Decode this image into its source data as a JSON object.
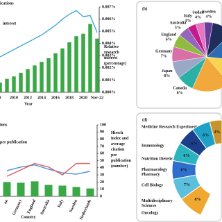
{
  "chart_data": [
    {
      "type": "bar",
      "panel_label": null,
      "categories": [
        "8",
        null,
        "2010",
        null,
        "2012",
        null,
        "2014",
        null,
        "2016",
        null,
        "2018",
        null,
        "2020",
        null,
        "Nov-22"
      ],
      "series": [
        {
          "name": "ications",
          "kind": "bar",
          "color": "#3aa845",
          "values": [
            0.0008,
            0.0011,
            0.0013,
            0.0016,
            0.0019,
            0.0022,
            0.0025,
            0.0028,
            0.0032,
            0.0036,
            0.0041,
            0.0046,
            0.0048,
            0.0056,
            0.0044
          ]
        },
        {
          "name": "interest",
          "kind": "line",
          "color": "#3fa9d6",
          "values": [
            0.0029,
            0.0032,
            0.0035,
            0.0038,
            0.0041,
            0.0044,
            0.0047,
            0.0051,
            0.0055,
            0.006,
            0.0064,
            0.0067,
            0.0062,
            0.0063,
            0.0049
          ]
        }
      ],
      "ylim": [
        0,
        0.007
      ],
      "yticks": [
        {
          "value": 0,
          "label": "0.000%"
        },
        {
          "value": 0.001,
          "label": "0.001%"
        },
        {
          "value": 0.002,
          "label": "0.002%"
        },
        {
          "value": 0.003,
          "label": "0.003%"
        },
        {
          "value": 0.004,
          "label": "0.004%"
        },
        {
          "value": 0.005,
          "label": "0.005%"
        },
        {
          "value": 0.006,
          "label": "0.006%"
        },
        {
          "value": 0.007,
          "label": "0.007%"
        }
      ],
      "x_label": "Year",
      "y_label": "Relative research interest (percentage)"
    },
    {
      "type": "pie",
      "panel_label": "(b)",
      "categories": [
        "Sweden",
        "Sudan",
        "Italy",
        "Australia",
        "England",
        "Germany",
        "Japan",
        "Canada",
        null,
        null,
        null,
        null
      ],
      "values": [
        4,
        4,
        4,
        5,
        6,
        7,
        8,
        8,
        18,
        12,
        14,
        10
      ],
      "value_labels": [
        "4%",
        "4%",
        "4%",
        "5%",
        "6%",
        "7%",
        "8%",
        "8%",
        null,
        null,
        null,
        null
      ],
      "colors": [
        "#6a3d9a",
        "#e377c2",
        "#c51b8a",
        "#9467bd",
        "#8fbc3f",
        "#d86fa8",
        "#9aa7c7",
        "#2bb0a6",
        "#f2a93b",
        "#f7d44a",
        "#2e6db4",
        "#1f2d5a"
      ]
    },
    {
      "type": "bar",
      "panel_label": null,
      "categories": [
        "an",
        "Germany",
        "England",
        "Australia",
        "Italy",
        "Sweden",
        "Netherlands"
      ],
      "series": [
        {
          "name": "ions",
          "kind": "bar",
          "color": "#3aa845",
          "values": [
            20,
            19,
            21,
            16,
            15,
            13,
            11
          ]
        },
        {
          "name": "per publication",
          "kind": "line",
          "color": "#4a90d9",
          "values": [
            36,
            41,
            44,
            38,
            33,
            31,
            35
          ]
        },
        {
          "kind": "line",
          "color": "#e05a5a",
          "values": [
            28,
            37,
            46,
            41,
            30,
            46,
            46
          ]
        }
      ],
      "ylim": [
        0,
        100
      ],
      "yticks": [
        0,
        10,
        20,
        30,
        40,
        50,
        60,
        70,
        80,
        90,
        100
      ],
      "x_label": "Country",
      "y_label": "Hirsch index and average citation per publication (number)"
    },
    {
      "type": "donut",
      "panel_label": "(d)",
      "categories": [
        "Medicine Research Experimental",
        "Immunology",
        "Nutrition Dietetics",
        "Pharmacology Pharmacy",
        "Cell Biology",
        "Multidisciplinary Sciences",
        "Oncology"
      ],
      "values": [
        4,
        6,
        6,
        6,
        6,
        7,
        8
      ],
      "value_labels": [
        "4%",
        "6%",
        "6%",
        "6%",
        "6%",
        "7%",
        "8%"
      ],
      "colors": [
        "#c8932b",
        "#1fa0c8",
        "#1c3f8c",
        "#2bb3c0",
        "#2f6ecb",
        "#5bc0de",
        "#f0a830"
      ]
    }
  ]
}
